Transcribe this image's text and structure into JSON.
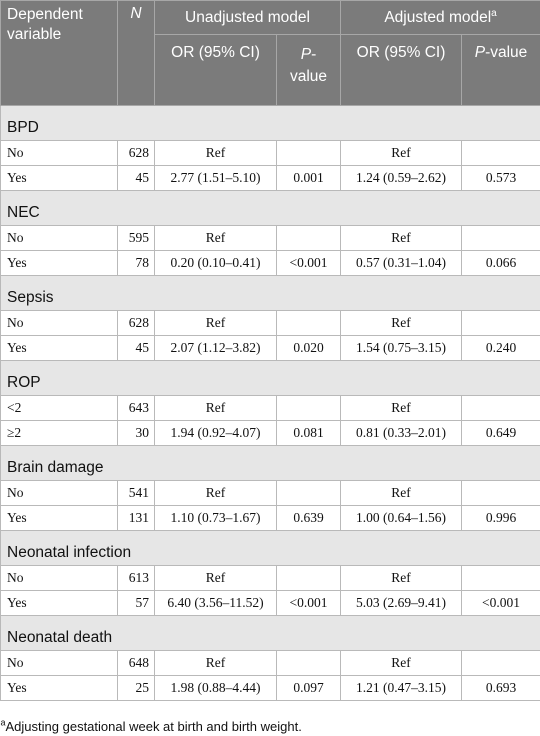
{
  "header": {
    "dependent_variable": [
      "Dependent",
      "variable"
    ],
    "n": "N",
    "unadjusted_model": "Unadjusted model",
    "adjusted_model": "Adjusted model",
    "adjusted_sup": "a",
    "or_ci": "OR (95% CI)",
    "p_italic": "P",
    "p_rest_split": [
      "-",
      "value"
    ],
    "p_rest": "-value"
  },
  "sections": [
    {
      "title": "BPD",
      "rows": [
        {
          "label": "No",
          "n": "628",
          "or_u": "Ref",
          "p_u": "",
          "or_a": "Ref",
          "p_a": ""
        },
        {
          "label": "Yes",
          "n": "45",
          "or_u": "2.77 (1.51–5.10)",
          "p_u": "0.001",
          "or_a": "1.24 (0.59–2.62)",
          "p_a": "0.573"
        }
      ]
    },
    {
      "title": "NEC",
      "rows": [
        {
          "label": "No",
          "n": "595",
          "or_u": "Ref",
          "p_u": "",
          "or_a": "Ref",
          "p_a": ""
        },
        {
          "label": "Yes",
          "n": "78",
          "or_u": "0.20 (0.10–0.41)",
          "p_u": "<0.001",
          "or_a": "0.57 (0.31–1.04)",
          "p_a": "0.066"
        }
      ]
    },
    {
      "title": "Sepsis",
      "rows": [
        {
          "label": "No",
          "n": "628",
          "or_u": "Ref",
          "p_u": "",
          "or_a": "Ref",
          "p_a": ""
        },
        {
          "label": "Yes",
          "n": "45",
          "or_u": "2.07 (1.12–3.82)",
          "p_u": "0.020",
          "or_a": "1.54 (0.75–3.15)",
          "p_a": "0.240"
        }
      ]
    },
    {
      "title": "ROP",
      "rows": [
        {
          "label": "<2",
          "n": "643",
          "or_u": "Ref",
          "p_u": "",
          "or_a": "Ref",
          "p_a": ""
        },
        {
          "label": "≥2",
          "n": "30",
          "or_u": "1.94 (0.92–4.07)",
          "p_u": "0.081",
          "or_a": "0.81 (0.33–2.01)",
          "p_a": "0.649"
        }
      ]
    },
    {
      "title": "Brain damage",
      "rows": [
        {
          "label": "No",
          "n": "541",
          "or_u": "Ref",
          "p_u": "",
          "or_a": "Ref",
          "p_a": ""
        },
        {
          "label": "Yes",
          "n": "131",
          "or_u": "1.10 (0.73–1.67)",
          "p_u": "0.639",
          "or_a": "1.00 (0.64–1.56)",
          "p_a": "0.996"
        }
      ]
    },
    {
      "title": "Neonatal infection",
      "rows": [
        {
          "label": "No",
          "n": "613",
          "or_u": "Ref",
          "p_u": "",
          "or_a": "Ref",
          "p_a": ""
        },
        {
          "label": "Yes",
          "n": "57",
          "or_u": "6.40 (3.56–11.52)",
          "p_u": "<0.001",
          "or_a": "5.03 (2.69–9.41)",
          "p_a": "<0.001"
        }
      ]
    },
    {
      "title": "Neonatal death",
      "rows": [
        {
          "label": "No",
          "n": "648",
          "or_u": "Ref",
          "p_u": "",
          "or_a": "Ref",
          "p_a": ""
        },
        {
          "label": "Yes",
          "n": "25",
          "or_u": "1.98 (0.88–4.44)",
          "p_u": "0.097",
          "or_a": "1.21 (0.47–3.15)",
          "p_a": "0.693"
        }
      ]
    }
  ],
  "footnote": {
    "sup": "a",
    "text": "Adjusting gestational week at birth and birth weight."
  }
}
